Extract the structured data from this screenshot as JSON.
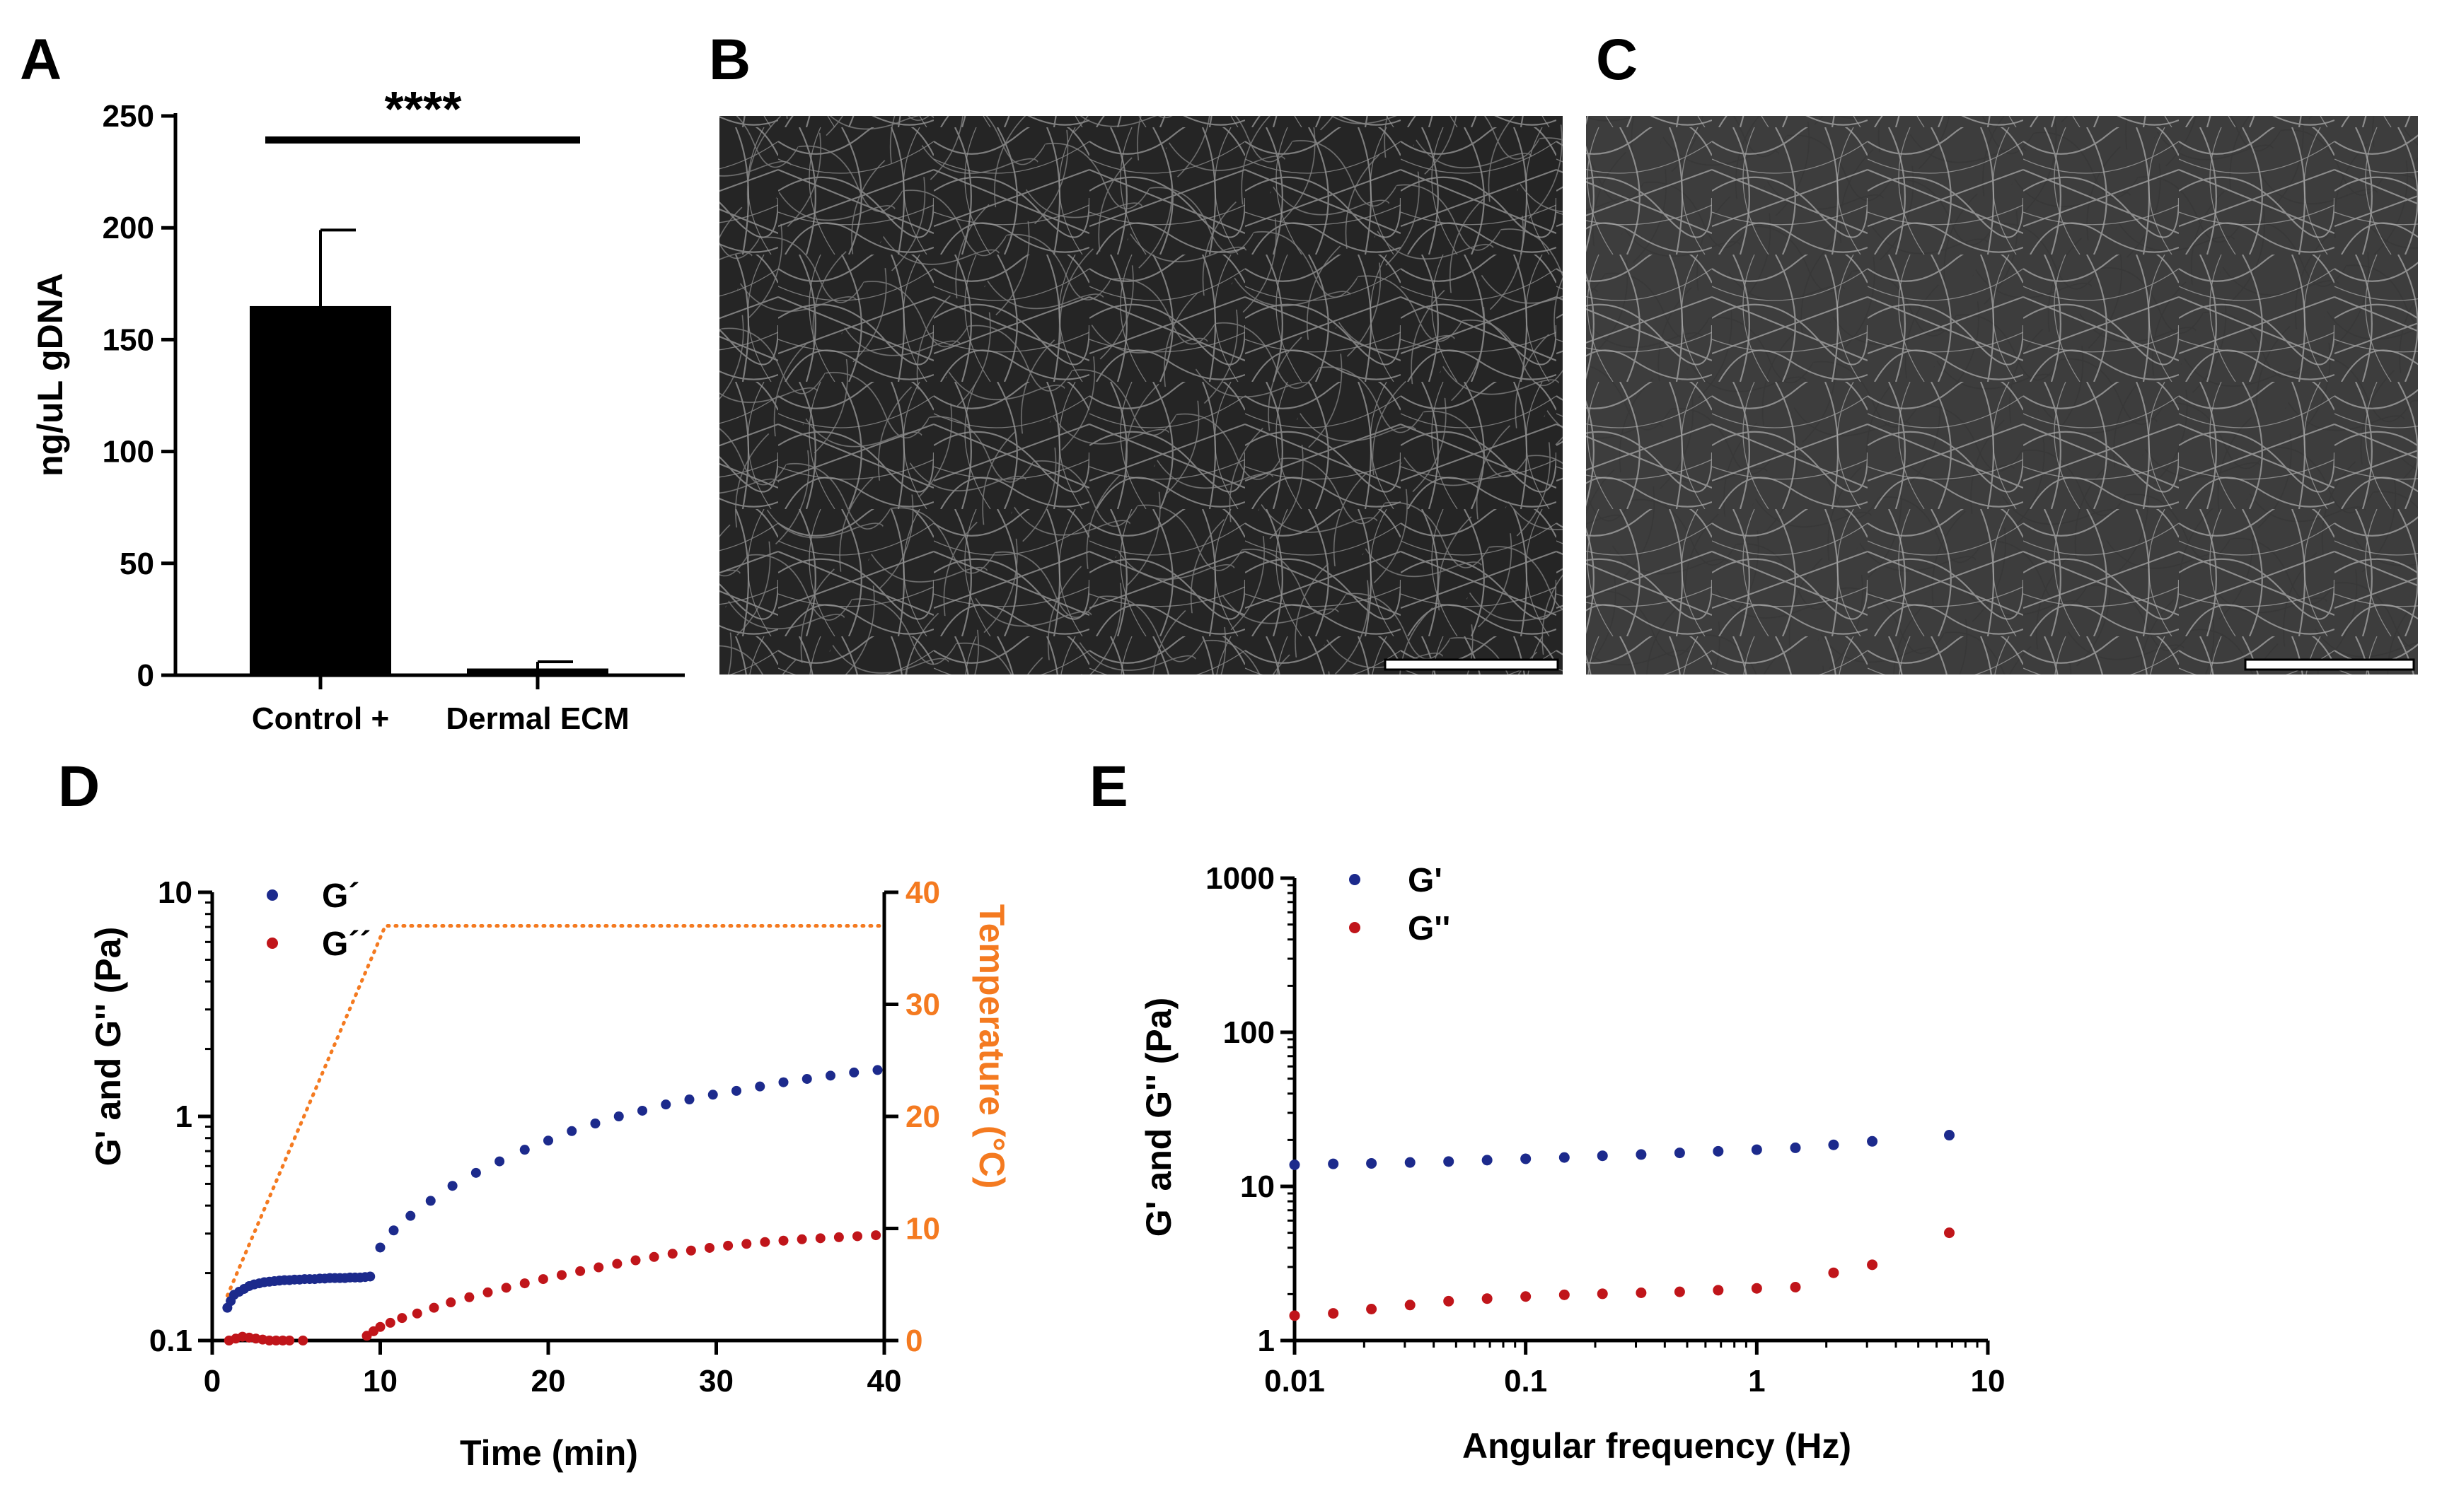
{
  "panel_labels": {
    "a": "A",
    "b": "B",
    "c": "C",
    "d": "D",
    "e": "E"
  },
  "colors": {
    "gprime": "#1c2a8c",
    "gdouble": "#c0151a",
    "temperature": "#f47a20",
    "bar": "#000000"
  },
  "chart_data": [
    {
      "panel": "A",
      "type": "bar",
      "categories": [
        "Control +",
        "Dermal ECM"
      ],
      "values": [
        165,
        3
      ],
      "error_upper": [
        199,
        6
      ],
      "ylabel": "ng/uL gDNA",
      "yticks": [
        "0",
        "50",
        "100",
        "150",
        "200",
        "250"
      ],
      "ylim": [
        0,
        250
      ],
      "significance": "****"
    },
    {
      "panel": "D",
      "type": "scatter",
      "xlabel": "Time (min)",
      "ylabel": "G' and G'' (Pa)",
      "y2label": "Temperature (°C)",
      "xticks": [
        "0",
        "10",
        "20",
        "30",
        "40"
      ],
      "yticks": [
        "0.1",
        "1",
        "10"
      ],
      "y2ticks": [
        "0",
        "10",
        "20",
        "30",
        "40"
      ],
      "xlim": [
        0,
        40
      ],
      "ylim": [
        0.1,
        10
      ],
      "yscale": "log",
      "y2lim": [
        0,
        40
      ],
      "legend_position": "top-left",
      "series": [
        {
          "name": "G´",
          "color": "#1c2a8c",
          "x": [
            0.9,
            1.1,
            1.3,
            1.6,
            1.9,
            2.2,
            2.5,
            2.8,
            3.1,
            3.4,
            3.7,
            4.0,
            4.3,
            4.6,
            4.9,
            5.2,
            5.5,
            5.8,
            6.1,
            6.4,
            6.7,
            7.0,
            7.3,
            7.6,
            7.9,
            8.2,
            8.5,
            8.8,
            9.1,
            9.4,
            10.0,
            10.8,
            11.8,
            13.0,
            14.3,
            15.7,
            17.1,
            18.6,
            20.0,
            21.4,
            22.8,
            24.2,
            25.6,
            27.0,
            28.4,
            29.8,
            31.2,
            32.6,
            34.0,
            35.4,
            36.8,
            38.2,
            39.6
          ],
          "y": [
            0.14,
            0.15,
            0.16,
            0.165,
            0.17,
            0.175,
            0.178,
            0.18,
            0.182,
            0.183,
            0.184,
            0.185,
            0.186,
            0.186,
            0.187,
            0.187,
            0.188,
            0.188,
            0.188,
            0.189,
            0.189,
            0.19,
            0.19,
            0.19,
            0.19,
            0.191,
            0.191,
            0.191,
            0.192,
            0.193,
            0.26,
            0.31,
            0.36,
            0.42,
            0.49,
            0.56,
            0.63,
            0.71,
            0.78,
            0.86,
            0.93,
            1.0,
            1.06,
            1.13,
            1.19,
            1.25,
            1.3,
            1.36,
            1.42,
            1.47,
            1.52,
            1.57,
            1.61
          ]
        },
        {
          "name": "G´´",
          "color": "#c0151a",
          "x": [
            1.0,
            1.4,
            1.8,
            2.2,
            2.6,
            3.0,
            3.4,
            3.8,
            4.2,
            4.6,
            5.4,
            9.2,
            9.6,
            10.0,
            10.6,
            11.3,
            12.2,
            13.2,
            14.2,
            15.3,
            16.4,
            17.5,
            18.6,
            19.7,
            20.8,
            21.9,
            23.0,
            24.1,
            25.2,
            26.3,
            27.4,
            28.5,
            29.6,
            30.7,
            31.8,
            32.9,
            34.0,
            35.1,
            36.2,
            37.3,
            38.4,
            39.5
          ],
          "y": [
            0.1,
            0.102,
            0.104,
            0.103,
            0.102,
            0.101,
            0.1,
            0.1,
            0.1,
            0.1,
            0.1,
            0.105,
            0.11,
            0.115,
            0.12,
            0.126,
            0.132,
            0.14,
            0.148,
            0.156,
            0.164,
            0.172,
            0.18,
            0.188,
            0.196,
            0.204,
            0.212,
            0.22,
            0.228,
            0.236,
            0.244,
            0.252,
            0.259,
            0.265,
            0.27,
            0.275,
            0.279,
            0.283,
            0.286,
            0.289,
            0.292,
            0.295
          ]
        },
        {
          "name": "Temperature",
          "color": "#f47a20",
          "line": "dotted",
          "x": [
            0.9,
            10.3,
            40.0
          ],
          "y": [
            4,
            37,
            37
          ]
        }
      ]
    },
    {
      "panel": "E",
      "type": "scatter",
      "xlabel": "Angular frequency (Hz)",
      "ylabel": "G' and G'' (Pa)",
      "xscale": "log",
      "yscale": "log",
      "xticks": [
        "0.01",
        "0.1",
        "1",
        "10"
      ],
      "yticks": [
        "1",
        "10",
        "100",
        "1000"
      ],
      "xlim": [
        0.01,
        10
      ],
      "ylim": [
        1,
        1000
      ],
      "legend_position": "top-left",
      "series": [
        {
          "name": "G'",
          "color": "#1c2a8c",
          "x": [
            0.01,
            0.0147,
            0.0215,
            0.0316,
            0.0464,
            0.0681,
            0.1,
            0.147,
            0.215,
            0.316,
            0.464,
            0.681,
            1.0,
            1.47,
            2.15,
            3.16,
            6.81
          ],
          "y": [
            13.8,
            14.0,
            14.1,
            14.3,
            14.5,
            14.8,
            15.1,
            15.4,
            15.8,
            16.1,
            16.5,
            16.9,
            17.3,
            17.8,
            18.6,
            19.6,
            21.5
          ]
        },
        {
          "name": "G''",
          "color": "#c0151a",
          "x": [
            0.01,
            0.0147,
            0.0215,
            0.0316,
            0.0464,
            0.0681,
            0.1,
            0.147,
            0.215,
            0.316,
            0.464,
            0.681,
            1.0,
            1.47,
            2.15,
            3.16,
            6.81
          ],
          "y": [
            1.45,
            1.5,
            1.6,
            1.7,
            1.8,
            1.87,
            1.93,
            1.98,
            2.01,
            2.04,
            2.07,
            2.12,
            2.18,
            2.22,
            2.75,
            3.1,
            5.0
          ]
        }
      ]
    }
  ]
}
